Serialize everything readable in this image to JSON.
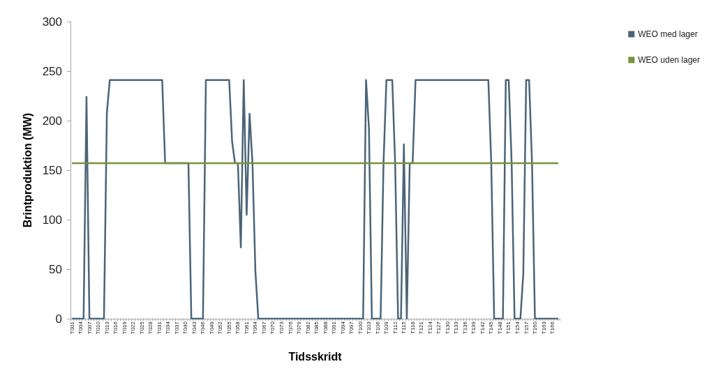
{
  "chart_data": {
    "type": "line",
    "xlabel": "Tidsskridt",
    "ylabel": "Brintproduktion (MW)",
    "categories": [
      "T001",
      null,
      null,
      "T004",
      null,
      null,
      "T007",
      null,
      null,
      "T010",
      null,
      null,
      "T013",
      null,
      null,
      "T016",
      null,
      null,
      "T019",
      null,
      null,
      "T022",
      null,
      null,
      "T025",
      null,
      null,
      "T028",
      null,
      null,
      "T031",
      null,
      null,
      "T034",
      null,
      null,
      "T037",
      null,
      null,
      "T040",
      null,
      null,
      "T043",
      null,
      null,
      "T046",
      null,
      null,
      "T049",
      null,
      null,
      "T052",
      null,
      null,
      "T055",
      null,
      null,
      "T058",
      null,
      null,
      "T061",
      null,
      null,
      "T064",
      null,
      null,
      "T067",
      null,
      null,
      "T070",
      null,
      null,
      "T073",
      null,
      null,
      "T076",
      null,
      null,
      "T079",
      null,
      null,
      "T082",
      null,
      null,
      "T085",
      null,
      null,
      "T088",
      null,
      null,
      "T091",
      null,
      null,
      "T094",
      null,
      null,
      "T097",
      null,
      null,
      "T100",
      null,
      null,
      "T103",
      null,
      null,
      "T106",
      null,
      null,
      "T109",
      null,
      null,
      "T112",
      null,
      null,
      "T115",
      null,
      null,
      "T118",
      null,
      null,
      "T121",
      null,
      null,
      "T124",
      null,
      null,
      "T127",
      null,
      null,
      "T130",
      null,
      null,
      "T133",
      null,
      null,
      "T136",
      null,
      null,
      "T139",
      null,
      null,
      "T142",
      null,
      null,
      "T145",
      null,
      null,
      "T148",
      null,
      null,
      "T151",
      null,
      null,
      "T154",
      null,
      null,
      "T157",
      null,
      null,
      "T160",
      null,
      null,
      "T163",
      null,
      null,
      "T166",
      null,
      null
    ],
    "series": [
      {
        "name": "WEO med lager",
        "color": "#4a6478",
        "values": [
          0,
          0,
          0,
          0,
          0,
          224,
          0,
          0,
          0,
          0,
          0,
          0,
          208,
          241,
          241,
          241,
          241,
          241,
          241,
          241,
          241,
          241,
          241,
          241,
          241,
          241,
          241,
          241,
          241,
          241,
          241,
          241,
          157,
          157,
          157,
          157,
          157,
          157,
          157,
          157,
          157,
          0,
          0,
          0,
          0,
          0,
          241,
          241,
          241,
          241,
          241,
          241,
          241,
          241,
          241,
          179,
          157,
          157,
          72,
          241,
          105,
          207,
          157,
          48,
          0,
          0,
          0,
          0,
          0,
          0,
          0,
          0,
          0,
          0,
          0,
          0,
          0,
          0,
          0,
          0,
          0,
          0,
          0,
          0,
          0,
          0,
          0,
          0,
          0,
          0,
          0,
          0,
          0,
          0,
          0,
          0,
          0,
          0,
          0,
          0,
          0,
          241,
          192,
          0,
          0,
          0,
          0,
          157,
          241,
          241,
          241,
          157,
          0,
          0,
          176,
          0,
          157,
          157,
          241,
          241,
          241,
          241,
          241,
          241,
          241,
          241,
          241,
          241,
          241,
          241,
          241,
          241,
          241,
          241,
          241,
          241,
          241,
          241,
          241,
          241,
          241,
          241,
          241,
          241,
          157,
          0,
          0,
          0,
          0,
          241,
          241,
          157,
          0,
          0,
          0,
          45,
          241,
          241,
          157,
          0,
          0,
          0,
          0,
          0,
          0,
          0,
          0,
          0
        ]
      },
      {
        "name": "WEO uden lager",
        "color": "#77923c",
        "values": [
          157,
          157,
          157,
          157,
          157,
          157,
          157,
          157,
          157,
          157,
          157,
          157,
          157,
          157,
          157,
          157,
          157,
          157,
          157,
          157,
          157,
          157,
          157,
          157,
          157,
          157,
          157,
          157,
          157,
          157,
          157,
          157,
          157,
          157,
          157,
          157,
          157,
          157,
          157,
          157,
          157,
          157,
          157,
          157,
          157,
          157,
          157,
          157,
          157,
          157,
          157,
          157,
          157,
          157,
          157,
          157,
          157,
          157,
          157,
          157,
          157,
          157,
          157,
          157,
          157,
          157,
          157,
          157,
          157,
          157,
          157,
          157,
          157,
          157,
          157,
          157,
          157,
          157,
          157,
          157,
          157,
          157,
          157,
          157,
          157,
          157,
          157,
          157,
          157,
          157,
          157,
          157,
          157,
          157,
          157,
          157,
          157,
          157,
          157,
          157,
          157,
          157,
          157,
          157,
          157,
          157,
          157,
          157,
          157,
          157,
          157,
          157,
          157,
          157,
          157,
          157,
          157,
          157,
          157,
          157,
          157,
          157,
          157,
          157,
          157,
          157,
          157,
          157,
          157,
          157,
          157,
          157,
          157,
          157,
          157,
          157,
          157,
          157,
          157,
          157,
          157,
          157,
          157,
          157,
          157,
          157,
          157,
          157,
          157,
          157,
          157,
          157,
          157,
          157,
          157,
          157,
          157,
          157,
          157,
          157,
          157,
          157,
          157,
          157,
          157,
          157,
          157,
          157
        ]
      }
    ],
    "ylim": [
      0,
      300
    ],
    "yticks": [
      0,
      50,
      100,
      150,
      200,
      250,
      300
    ],
    "grid": false,
    "legend": "top right",
    "marker": "none",
    "line_style": "solid"
  }
}
